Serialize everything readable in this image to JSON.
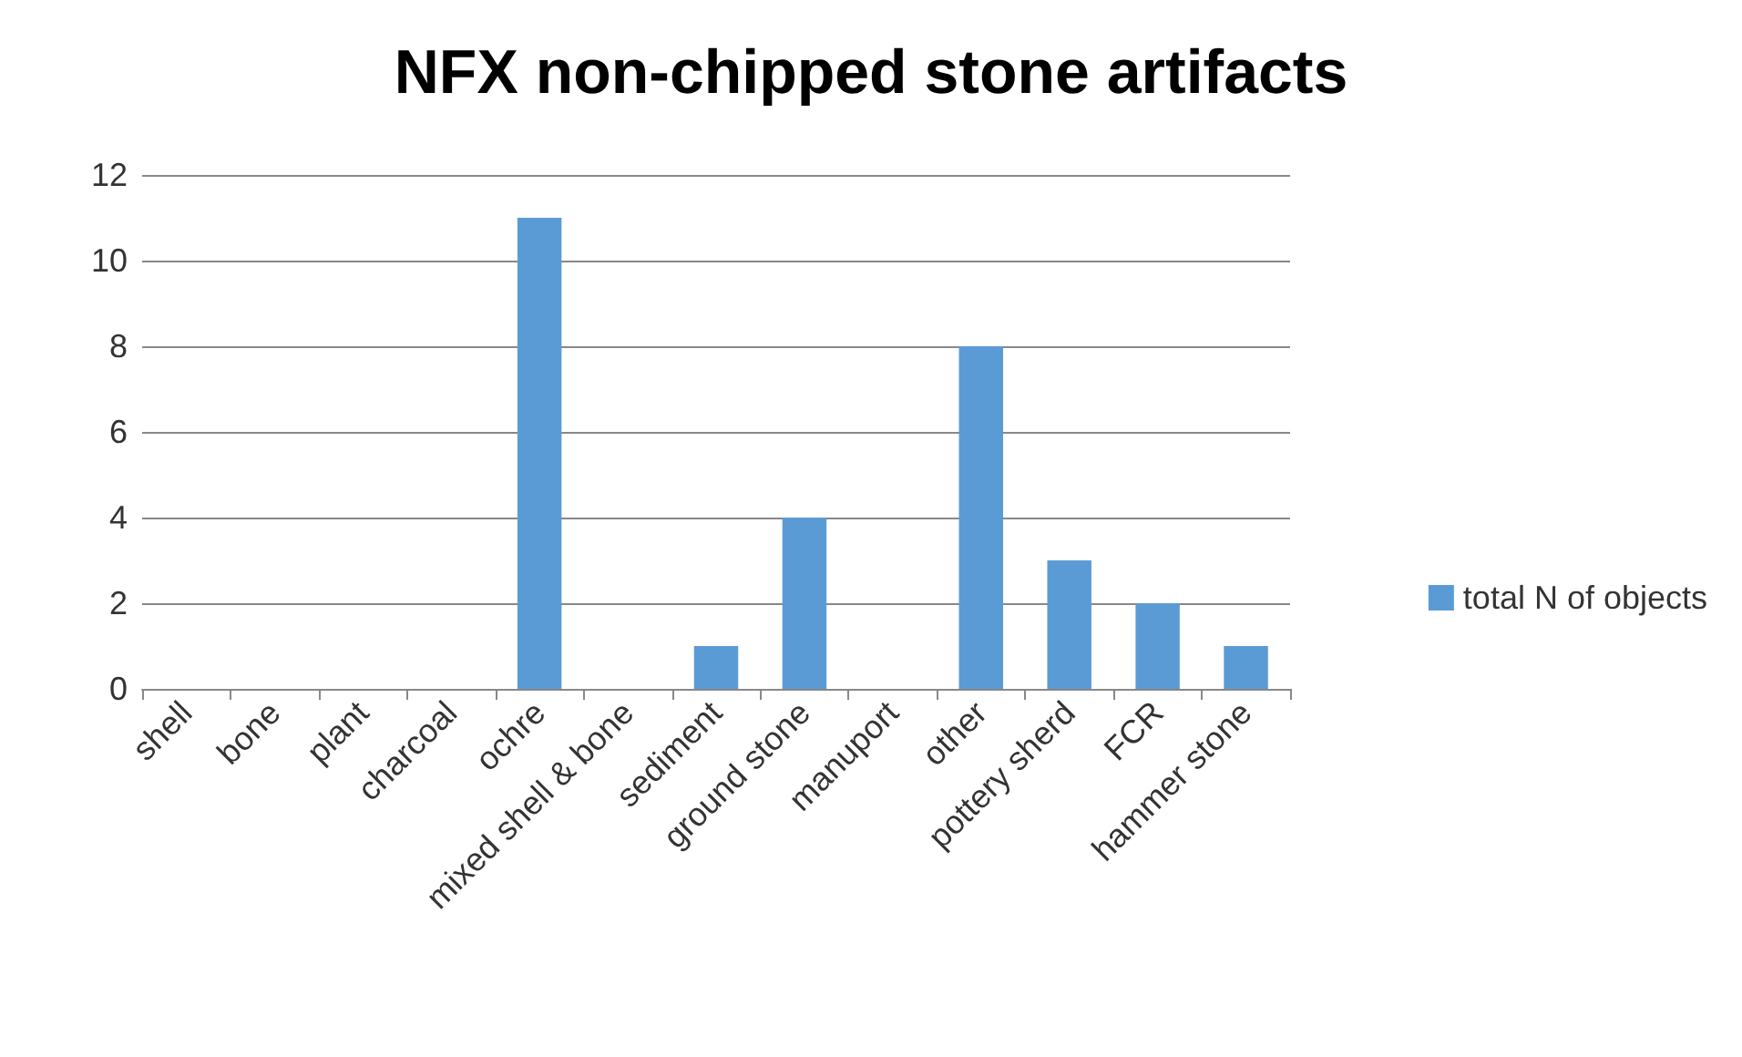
{
  "chart_data": {
    "type": "bar",
    "title": "NFX non-chipped stone artifacts",
    "categories": [
      "shell",
      "bone",
      "plant",
      "charcoal",
      "ochre",
      "mixed shell & bone",
      "sediment",
      "ground stone",
      "manuport",
      "other",
      "pottery sherd",
      "FCR",
      "hammer stone"
    ],
    "series": [
      {
        "name": "total N of objects",
        "color": "#5b9bd5",
        "values": [
          0,
          0,
          0,
          0,
          11,
          0,
          1,
          4,
          0,
          8,
          3,
          2,
          1
        ]
      }
    ],
    "ylim": [
      0,
      12
    ],
    "yticks": [
      0,
      2,
      4,
      6,
      8,
      10,
      12
    ],
    "grid": "y",
    "legend": "right"
  }
}
